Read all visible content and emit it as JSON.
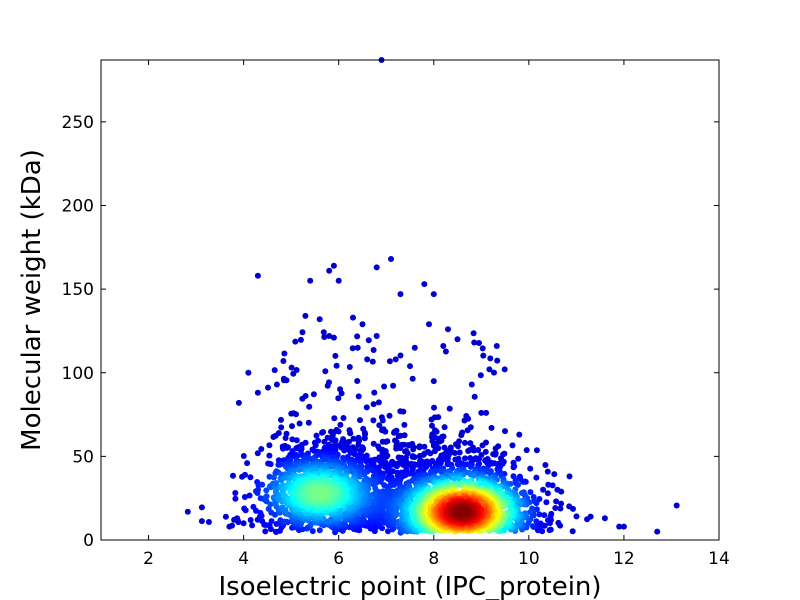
{
  "chart_data": {
    "type": "scatter",
    "title": "",
    "xlabel": "Isoelectric point (IPC_protein)",
    "ylabel": "Molecular weight (kDa)",
    "xlim": [
      1,
      14
    ],
    "ylim": [
      0,
      287
    ],
    "x_ticks": [
      2,
      4,
      6,
      8,
      10,
      12,
      14
    ],
    "y_ticks": [
      0,
      50,
      100,
      150,
      200,
      250
    ],
    "x_tick_labels": [
      "2",
      "4",
      "6",
      "8",
      "10",
      "12",
      "14"
    ],
    "y_tick_labels": [
      "0",
      "50",
      "100",
      "150",
      "200",
      "250"
    ],
    "grid": false,
    "legend": "none",
    "colormap": "jet (point density)",
    "colors": {
      "low_density": "#00008f",
      "mid_density": "#00ffff",
      "high_density": "#ff0000",
      "peak_density": "#800000"
    },
    "clusters": [
      {
        "center_x": 5.6,
        "center_y": 28,
        "peak_density": 0.45
      },
      {
        "center_x": 8.6,
        "center_y": 17,
        "peak_density": 1.0
      }
    ],
    "outlier_points": [
      {
        "x": 6.9,
        "y": 287
      },
      {
        "x": 4.3,
        "y": 158
      },
      {
        "x": 5.8,
        "y": 161
      },
      {
        "x": 5.9,
        "y": 164
      },
      {
        "x": 6.0,
        "y": 155
      },
      {
        "x": 7.1,
        "y": 168
      },
      {
        "x": 6.8,
        "y": 163
      },
      {
        "x": 7.8,
        "y": 153
      },
      {
        "x": 7.3,
        "y": 147
      },
      {
        "x": 8.0,
        "y": 147
      },
      {
        "x": 5.4,
        "y": 155
      },
      {
        "x": 5.3,
        "y": 134
      },
      {
        "x": 5.6,
        "y": 132
      },
      {
        "x": 6.3,
        "y": 133
      },
      {
        "x": 6.5,
        "y": 129
      },
      {
        "x": 7.9,
        "y": 129
      },
      {
        "x": 8.3,
        "y": 126
      },
      {
        "x": 8.5,
        "y": 120
      },
      {
        "x": 5.8,
        "y": 122
      },
      {
        "x": 5.9,
        "y": 121
      },
      {
        "x": 6.8,
        "y": 122
      },
      {
        "x": 6.4,
        "y": 115
      },
      {
        "x": 7.6,
        "y": 115
      },
      {
        "x": 8.2,
        "y": 116
      },
      {
        "x": 4.1,
        "y": 100
      },
      {
        "x": 3.9,
        "y": 82
      },
      {
        "x": 4.3,
        "y": 88
      },
      {
        "x": 4.7,
        "y": 93
      },
      {
        "x": 6.6,
        "y": 108
      },
      {
        "x": 7.2,
        "y": 108
      },
      {
        "x": 7.5,
        "y": 104
      },
      {
        "x": 8.0,
        "y": 95
      },
      {
        "x": 8.8,
        "y": 93
      },
      {
        "x": 9.1,
        "y": 76
      },
      {
        "x": 9.0,
        "y": 76
      },
      {
        "x": 9.8,
        "y": 63
      },
      {
        "x": 10.3,
        "y": 30
      },
      {
        "x": 10.4,
        "y": 28
      },
      {
        "x": 10.6,
        "y": 30
      },
      {
        "x": 11.3,
        "y": 14
      },
      {
        "x": 11.6,
        "y": 13
      },
      {
        "x": 11.9,
        "y": 8
      },
      {
        "x": 12.0,
        "y": 8
      },
      {
        "x": 12.7,
        "y": 5
      },
      {
        "x": 3.7,
        "y": 8
      },
      {
        "x": 3.8,
        "y": 12
      },
      {
        "x": 4.0,
        "y": 10
      }
    ]
  }
}
